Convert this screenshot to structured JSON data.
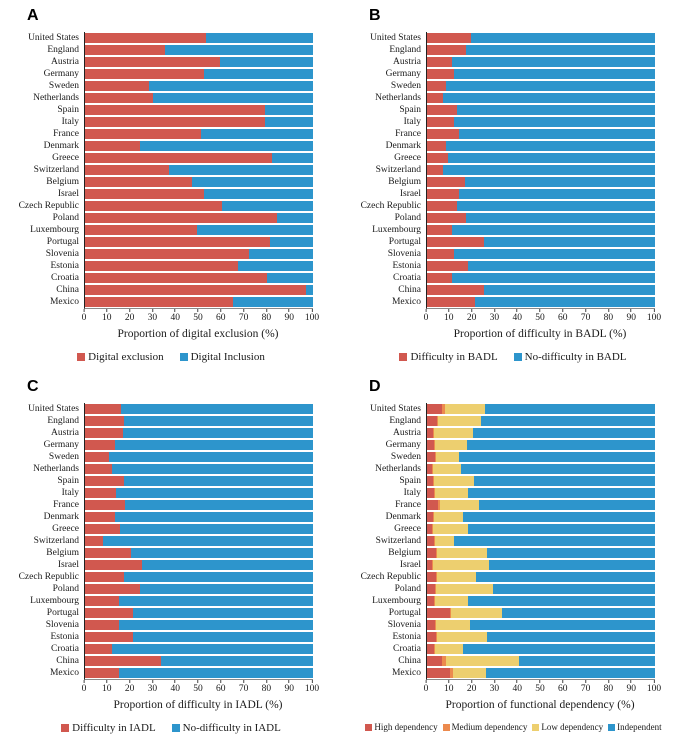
{
  "figure": {
    "panel_labels": [
      "A",
      "B",
      "C",
      "D"
    ],
    "colors": {
      "red": "#d1584f",
      "blue": "#2d95cc",
      "orange": "#ec8a4e",
      "yellow": "#edcf6f"
    }
  },
  "chart_data": [
    {
      "id": "A",
      "panel_label": "A",
      "type": "bar",
      "stacked": true,
      "orientation": "horizontal",
      "xlabel": "Proportion of digital exclusion (%)",
      "xlim": [
        0,
        100
      ],
      "xticks": [
        0,
        10,
        20,
        30,
        40,
        50,
        60,
        70,
        80,
        90,
        100
      ],
      "legend_position": "bottom",
      "grid": false,
      "categories": [
        "United States",
        "England",
        "Austria",
        "Germany",
        "Sweden",
        "Netherlands",
        "Spain",
        "Italy",
        "France",
        "Denmark",
        "Greece",
        "Switzerland",
        "Belgium",
        "Israel",
        "Czech Republic",
        "Poland",
        "Luxembourg",
        "Portugal",
        "Slovenia",
        "Estonia",
        "Croatia",
        "China",
        "Mexico"
      ],
      "series": [
        {
          "name": "Digital exclusion",
          "color": "#d1584f",
          "values": [
            53,
            35,
            59,
            52,
            28,
            30,
            79,
            79,
            51,
            24,
            82,
            37,
            47,
            52,
            60,
            84,
            49,
            81,
            72,
            67,
            80,
            97,
            65
          ]
        },
        {
          "name": "Digital Inclusion",
          "color": "#2d95cc",
          "values": [
            47,
            65,
            41,
            48,
            72,
            70,
            21,
            21,
            49,
            76,
            18,
            63,
            53,
            48,
            40,
            16,
            51,
            19,
            28,
            33,
            20,
            3,
            35
          ]
        }
      ]
    },
    {
      "id": "B",
      "panel_label": "B",
      "type": "bar",
      "stacked": true,
      "orientation": "horizontal",
      "xlabel": "Proportion of difficulty in BADL (%)",
      "xlim": [
        0,
        100
      ],
      "xticks": [
        0,
        10,
        20,
        30,
        40,
        50,
        60,
        70,
        80,
        90,
        100
      ],
      "legend_position": "bottom",
      "grid": false,
      "categories": [
        "United States",
        "England",
        "Austria",
        "Germany",
        "Sweden",
        "Netherlands",
        "Spain",
        "Italy",
        "France",
        "Denmark",
        "Greece",
        "Switzerland",
        "Belgium",
        "Israel",
        "Czech Republic",
        "Poland",
        "Luxembourg",
        "Portugal",
        "Slovenia",
        "Estonia",
        "Croatia",
        "China",
        "Mexico"
      ],
      "series": [
        {
          "name": "Difficulty in BADL",
          "color": "#d1584f",
          "values": [
            19.5,
            17,
            11,
            12,
            8.5,
            7,
            13,
            12,
            14,
            8.5,
            9,
            7,
            16.5,
            14,
            13,
            17,
            11,
            25,
            12,
            18,
            11,
            25,
            21
          ]
        },
        {
          "name": "No-difficulty in BADL",
          "color": "#2d95cc",
          "values": [
            80.5,
            83,
            89,
            88,
            91.5,
            93,
            87,
            88,
            86,
            91.5,
            91,
            93,
            83.5,
            86,
            87,
            83,
            89,
            75,
            88,
            82,
            89,
            75,
            79
          ]
        }
      ]
    },
    {
      "id": "C",
      "panel_label": "C",
      "type": "bar",
      "stacked": true,
      "orientation": "horizontal",
      "xlabel": "Proportion of difficulty in IADL (%)",
      "xlim": [
        0,
        100
      ],
      "xticks": [
        0,
        10,
        20,
        30,
        40,
        50,
        60,
        70,
        80,
        90,
        100
      ],
      "legend_position": "bottom",
      "grid": false,
      "categories": [
        "United States",
        "England",
        "Austria",
        "Germany",
        "Sweden",
        "Netherlands",
        "Spain",
        "Italy",
        "France",
        "Denmark",
        "Greece",
        "Switzerland",
        "Belgium",
        "Israel",
        "Czech Republic",
        "Poland",
        "Luxembourg",
        "Portugal",
        "Slovenia",
        "Estonia",
        "Croatia",
        "China",
        "Mexico"
      ],
      "series": [
        {
          "name": "Difficulty in IADL",
          "color": "#d1584f",
          "values": [
            16,
            17,
            16.5,
            13,
            10.5,
            12,
            17,
            13.5,
            17.5,
            13,
            15.5,
            8,
            20,
            25,
            17,
            24,
            15,
            21,
            15,
            21,
            12,
            33.5,
            15
          ]
        },
        {
          "name": "No-difficulty in IADL",
          "color": "#2d95cc",
          "values": [
            84,
            83,
            83.5,
            87,
            89.5,
            88,
            83,
            86.5,
            82.5,
            87,
            84.5,
            92,
            80,
            75,
            83,
            76,
            85,
            79,
            85,
            79,
            88,
            66.5,
            85
          ]
        }
      ]
    },
    {
      "id": "D",
      "panel_label": "D",
      "type": "bar",
      "stacked": true,
      "orientation": "horizontal",
      "xlabel": "Proportion of functional dependency (%)",
      "xlim": [
        0,
        100
      ],
      "xticks": [
        0,
        10,
        20,
        30,
        40,
        50,
        60,
        70,
        80,
        90,
        100
      ],
      "legend_position": "bottom",
      "grid": false,
      "categories": [
        "United States",
        "England",
        "Austria",
        "Germany",
        "Sweden",
        "Netherlands",
        "Spain",
        "Italy",
        "France",
        "Denmark",
        "Greece",
        "Switzerland",
        "Belgium",
        "Israel",
        "Czech Republic",
        "Poland",
        "Luxembourg",
        "Portugal",
        "Slovenia",
        "Estonia",
        "Croatia",
        "China",
        "Mexico"
      ],
      "series": [
        {
          "name": "High dependency",
          "color": "#d1584f",
          "values": [
            6.5,
            4.5,
            2.5,
            3,
            3.5,
            2,
            2.5,
            3,
            5,
            2.5,
            2,
            3,
            4,
            2,
            4,
            3.5,
            3,
            10,
            3.5,
            4,
            3,
            6.5,
            10
          ]
        },
        {
          "name": "Medium dependency",
          "color": "#ec8a4e",
          "values": [
            1.5,
            0.5,
            0.5,
            0.5,
            0.5,
            0.5,
            0.5,
            0.5,
            0.5,
            0.5,
            0.5,
            0.5,
            0.5,
            0.5,
            0.5,
            0.5,
            0.5,
            0.5,
            0.5,
            0.5,
            0.5,
            2,
            1.5
          ]
        },
        {
          "name": "Low dependency",
          "color": "#edcf6f",
          "values": [
            17.5,
            18.5,
            17,
            14,
            10,
            12.5,
            17.5,
            14.5,
            17.5,
            13,
            15.5,
            8.5,
            22,
            24.5,
            17,
            25,
            14.5,
            22.5,
            15,
            22,
            12.5,
            32,
            14.5
          ]
        },
        {
          "name": "Independent",
          "color": "#2d95cc",
          "values": [
            74.5,
            76.5,
            80,
            82.5,
            86,
            85,
            79.5,
            82,
            77,
            84,
            82,
            88,
            73.5,
            73,
            78.5,
            71,
            82,
            67,
            81,
            73.5,
            84,
            59.5,
            74
          ]
        }
      ]
    }
  ]
}
